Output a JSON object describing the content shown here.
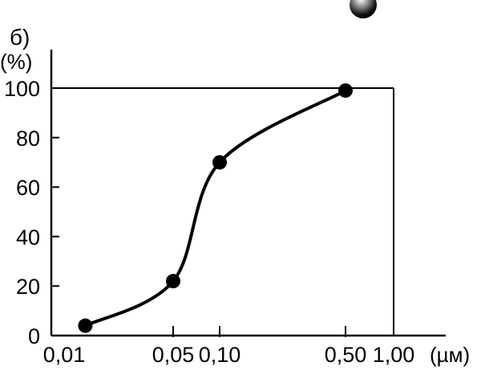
{
  "chart_data": {
    "type": "line",
    "panel_label": "б)",
    "ylabel": "(%)",
    "xlabel": "(µм)",
    "x_scale": "log",
    "x_ticks": [
      "0,01",
      "0,05",
      "0,10",
      "0,50",
      "1,00"
    ],
    "x_tick_values": [
      0.01,
      0.05,
      0.1,
      0.5,
      1.0
    ],
    "y_ticks": [
      "0",
      "20",
      "40",
      "60",
      "80",
      "100"
    ],
    "y_tick_values": [
      0,
      20,
      40,
      60,
      80,
      100
    ],
    "xlim": [
      0.01,
      1.0
    ],
    "ylim": [
      0,
      100
    ],
    "grid": false,
    "series": [
      {
        "x": [
          0.012,
          0.05,
          0.1,
          0.5
        ],
        "y": [
          4,
          22,
          70,
          99
        ],
        "color": "#000000",
        "marker": "circle",
        "smooth": true
      }
    ]
  },
  "decoration": {
    "icon": "sphere-icon"
  }
}
